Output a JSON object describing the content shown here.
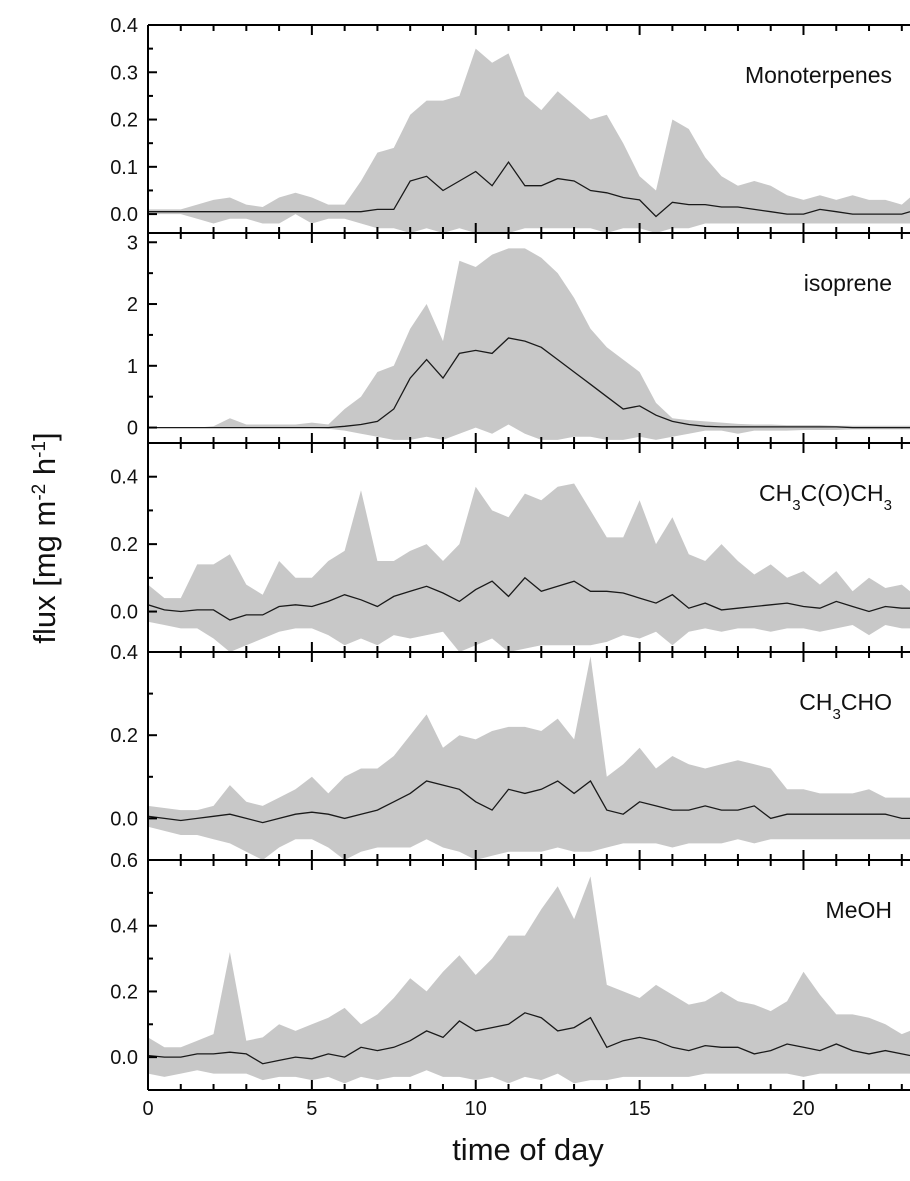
{
  "chart_data": {
    "type": "area",
    "xlabel": "time of day",
    "ylabel": "flux [mg m-2 h-1]",
    "ylabel_parts": {
      "main": "flux [mg m",
      "sup1": "-2",
      "mid": " h",
      "sup2": "-1",
      "end": "]"
    },
    "xlim": [
      0,
      23.25
    ],
    "xticks": [
      0,
      5,
      10,
      15,
      20
    ],
    "xtick_labels": [
      "0",
      "5",
      "10",
      "15",
      "20"
    ],
    "grid": false,
    "colors": {
      "band": "#c8c8c8",
      "line": "#1a1a1a",
      "axis": "#000000"
    },
    "x": [
      0,
      0.5,
      1,
      1.5,
      2,
      2.5,
      3,
      3.5,
      4,
      4.5,
      5,
      5.5,
      6,
      6.5,
      7,
      7.5,
      8,
      8.5,
      9,
      9.5,
      10,
      10.5,
      11,
      11.5,
      12,
      12.5,
      13,
      13.5,
      14,
      14.5,
      15,
      15.5,
      16,
      16.5,
      17,
      17.5,
      18,
      18.5,
      19,
      19.5,
      20,
      20.5,
      21,
      21.5,
      22,
      22.5,
      23,
      23.25
    ],
    "panels": [
      {
        "label": "Monoterpenes",
        "ylim": [
          -0.04,
          0.4
        ],
        "yticks": [
          0.0,
          0.1,
          0.2,
          0.3,
          0.4
        ],
        "ytick_labels": [
          "0.0",
          "0.1",
          "0.2",
          "0.3",
          "0.4"
        ],
        "mean": [
          0.005,
          0.005,
          0.005,
          0.005,
          0.005,
          0.005,
          0.005,
          0.005,
          0.005,
          0.005,
          0.005,
          0.005,
          0.005,
          0.005,
          0.01,
          0.01,
          0.07,
          0.08,
          0.05,
          0.07,
          0.09,
          0.06,
          0.11,
          0.06,
          0.06,
          0.075,
          0.07,
          0.05,
          0.045,
          0.035,
          0.03,
          -0.005,
          0.025,
          0.02,
          0.02,
          0.015,
          0.015,
          0.01,
          0.005,
          0.0,
          0.0,
          0.01,
          0.005,
          0.0,
          0.0,
          0.0,
          0.0,
          0.005
        ],
        "upper": [
          0.01,
          0.01,
          0.01,
          0.02,
          0.03,
          0.035,
          0.02,
          0.015,
          0.035,
          0.045,
          0.035,
          0.02,
          0.02,
          0.07,
          0.13,
          0.14,
          0.21,
          0.24,
          0.24,
          0.25,
          0.35,
          0.32,
          0.34,
          0.25,
          0.22,
          0.26,
          0.23,
          0.2,
          0.21,
          0.15,
          0.08,
          0.05,
          0.2,
          0.18,
          0.12,
          0.08,
          0.06,
          0.07,
          0.06,
          0.04,
          0.03,
          0.04,
          0.03,
          0.04,
          0.03,
          0.03,
          0.02,
          0.035
        ],
        "lower": [
          0.0,
          0.0,
          0.0,
          -0.01,
          -0.02,
          -0.01,
          -0.01,
          -0.02,
          -0.02,
          0.0,
          -0.02,
          -0.01,
          -0.01,
          -0.02,
          -0.03,
          -0.03,
          -0.04,
          -0.03,
          -0.04,
          -0.03,
          -0.04,
          -0.04,
          -0.04,
          -0.03,
          -0.03,
          -0.03,
          -0.03,
          -0.03,
          -0.04,
          -0.03,
          -0.03,
          -0.04,
          -0.03,
          -0.03,
          -0.02,
          -0.02,
          -0.02,
          -0.02,
          -0.02,
          -0.02,
          -0.02,
          -0.02,
          -0.02,
          -0.02,
          -0.02,
          -0.02,
          -0.02,
          -0.02
        ]
      },
      {
        "label": "isoprene",
        "ylim": [
          -0.25,
          3.15
        ],
        "yticks": [
          0,
          1,
          2,
          3
        ],
        "ytick_labels": [
          "0",
          "1",
          "2",
          "3"
        ],
        "mean": [
          0,
          0,
          0,
          0,
          0,
          0,
          0,
          0,
          0,
          0,
          0,
          0,
          0.02,
          0.05,
          0.1,
          0.3,
          0.8,
          1.1,
          0.8,
          1.2,
          1.25,
          1.2,
          1.45,
          1.4,
          1.3,
          1.1,
          0.9,
          0.7,
          0.5,
          0.3,
          0.35,
          0.2,
          0.1,
          0.05,
          0.02,
          0.01,
          0.01,
          0.01,
          0.01,
          0.01,
          0.01,
          0.01,
          0.01,
          0.0,
          0.0,
          0.0,
          0.0,
          0.0
        ],
        "upper": [
          0,
          0,
          0,
          0,
          0.02,
          0.15,
          0.05,
          0.05,
          0.05,
          0.05,
          0.08,
          0.05,
          0.3,
          0.5,
          0.9,
          1.0,
          1.6,
          2.0,
          1.4,
          2.7,
          2.6,
          2.8,
          2.9,
          2.9,
          2.75,
          2.5,
          2.1,
          1.6,
          1.3,
          1.1,
          0.9,
          0.4,
          0.15,
          0.12,
          0.1,
          0.08,
          0.06,
          0.05,
          0.05,
          0.04,
          0.04,
          0.04,
          0.03,
          0.03,
          0.03,
          0.03,
          0.03,
          0.03
        ],
        "lower": [
          0,
          0,
          0,
          0,
          0,
          0,
          0,
          0,
          0,
          0,
          0,
          -0.02,
          -0.05,
          -0.1,
          -0.15,
          -0.2,
          -0.2,
          -0.15,
          -0.2,
          -0.1,
          0.0,
          -0.1,
          0.05,
          -0.1,
          -0.2,
          -0.2,
          -0.15,
          -0.15,
          -0.2,
          -0.2,
          -0.15,
          -0.2,
          -0.15,
          -0.1,
          -0.05,
          -0.05,
          -0.1,
          -0.05,
          -0.05,
          -0.05,
          -0.04,
          -0.04,
          -0.04,
          -0.03,
          -0.03,
          -0.03,
          -0.03,
          -0.03
        ]
      },
      {
        "label": "CH3C(O)CH3",
        "label_parts": [
          "CH",
          "3",
          "C(O)CH",
          "3"
        ],
        "ylim": [
          -0.12,
          0.5
        ],
        "yticks": [
          0.0,
          0.2,
          0.4
        ],
        "ytick_labels": [
          "0.0",
          "0.2",
          "0.4"
        ],
        "mean": [
          0.02,
          0.005,
          0.0,
          0.005,
          0.005,
          -0.025,
          -0.01,
          -0.01,
          0.015,
          0.02,
          0.015,
          0.03,
          0.05,
          0.035,
          0.015,
          0.045,
          0.06,
          0.075,
          0.055,
          0.03,
          0.065,
          0.09,
          0.045,
          0.1,
          0.06,
          0.075,
          0.09,
          0.06,
          0.06,
          0.055,
          0.04,
          0.025,
          0.05,
          0.01,
          0.025,
          0.005,
          0.01,
          0.015,
          0.02,
          0.025,
          0.015,
          0.01,
          0.03,
          0.015,
          0.0,
          0.015,
          0.01,
          0.01
        ],
        "upper": [
          0.08,
          0.04,
          0.04,
          0.14,
          0.14,
          0.17,
          0.08,
          0.05,
          0.15,
          0.1,
          0.1,
          0.15,
          0.18,
          0.36,
          0.15,
          0.15,
          0.18,
          0.2,
          0.15,
          0.2,
          0.37,
          0.3,
          0.28,
          0.35,
          0.33,
          0.37,
          0.38,
          0.3,
          0.22,
          0.22,
          0.33,
          0.2,
          0.28,
          0.17,
          0.15,
          0.2,
          0.15,
          0.11,
          0.14,
          0.1,
          0.12,
          0.08,
          0.12,
          0.06,
          0.1,
          0.07,
          0.08,
          0.06
        ],
        "lower": [
          -0.03,
          -0.04,
          -0.05,
          -0.05,
          -0.08,
          -0.12,
          -0.1,
          -0.08,
          -0.06,
          -0.05,
          -0.05,
          -0.07,
          -0.1,
          -0.08,
          -0.1,
          -0.07,
          -0.08,
          -0.07,
          -0.06,
          -0.12,
          -0.1,
          -0.08,
          -0.12,
          -0.11,
          -0.1,
          -0.1,
          -0.1,
          -0.1,
          -0.09,
          -0.07,
          -0.08,
          -0.06,
          -0.1,
          -0.06,
          -0.05,
          -0.06,
          -0.05,
          -0.05,
          -0.06,
          -0.05,
          -0.05,
          -0.06,
          -0.05,
          -0.04,
          -0.07,
          -0.04,
          -0.05,
          -0.05
        ]
      },
      {
        "label": "CH3CHO",
        "label_parts": [
          "CH",
          "3",
          "CHO",
          ""
        ],
        "ylim": [
          -0.1,
          0.4
        ],
        "yticks": [
          0.0,
          0.2,
          0.4
        ],
        "ytick_labels": [
          "0.0",
          "0.2",
          "0.4"
        ],
        "mean": [
          0.005,
          0.0,
          -0.005,
          0.0,
          0.005,
          0.01,
          0.0,
          -0.01,
          0.0,
          0.01,
          0.015,
          0.01,
          0.0,
          0.01,
          0.02,
          0.04,
          0.06,
          0.09,
          0.08,
          0.07,
          0.04,
          0.02,
          0.07,
          0.06,
          0.07,
          0.09,
          0.06,
          0.09,
          0.02,
          0.01,
          0.04,
          0.03,
          0.02,
          0.02,
          0.03,
          0.02,
          0.02,
          0.03,
          0.0,
          0.01,
          0.01,
          0.01,
          0.01,
          0.01,
          0.01,
          0.01,
          0.0,
          0.0
        ],
        "upper": [
          0.03,
          0.025,
          0.02,
          0.02,
          0.03,
          0.08,
          0.04,
          0.03,
          0.05,
          0.07,
          0.1,
          0.06,
          0.1,
          0.12,
          0.12,
          0.15,
          0.2,
          0.25,
          0.17,
          0.2,
          0.19,
          0.21,
          0.22,
          0.22,
          0.21,
          0.24,
          0.19,
          0.39,
          0.1,
          0.13,
          0.17,
          0.12,
          0.15,
          0.13,
          0.12,
          0.13,
          0.14,
          0.13,
          0.12,
          0.07,
          0.07,
          0.06,
          0.06,
          0.06,
          0.07,
          0.05,
          0.05,
          0.05
        ],
        "lower": [
          -0.02,
          -0.03,
          -0.04,
          -0.04,
          -0.05,
          -0.06,
          -0.08,
          -0.1,
          -0.07,
          -0.05,
          -0.05,
          -0.07,
          -0.1,
          -0.08,
          -0.07,
          -0.07,
          -0.07,
          -0.05,
          -0.07,
          -0.08,
          -0.1,
          -0.09,
          -0.08,
          -0.08,
          -0.08,
          -0.07,
          -0.08,
          -0.08,
          -0.07,
          -0.06,
          -0.06,
          -0.06,
          -0.07,
          -0.06,
          -0.06,
          -0.06,
          -0.05,
          -0.06,
          -0.05,
          -0.05,
          -0.05,
          -0.05,
          -0.05,
          -0.05,
          -0.05,
          -0.05,
          -0.05,
          -0.05
        ]
      },
      {
        "label": "MeOH",
        "ylim": [
          -0.1,
          0.6
        ],
        "yticks": [
          0.0,
          0.2,
          0.4,
          0.6
        ],
        "ytick_labels": [
          "0.0",
          "0.2",
          "0.4",
          "0.6"
        ],
        "mean": [
          0.005,
          0.0,
          0.0,
          0.01,
          0.01,
          0.015,
          0.01,
          -0.02,
          -0.01,
          0.0,
          -0.005,
          0.01,
          0.0,
          0.03,
          0.02,
          0.03,
          0.05,
          0.08,
          0.06,
          0.11,
          0.08,
          0.09,
          0.1,
          0.135,
          0.12,
          0.08,
          0.09,
          0.12,
          0.03,
          0.05,
          0.06,
          0.05,
          0.03,
          0.02,
          0.035,
          0.03,
          0.03,
          0.01,
          0.02,
          0.04,
          0.03,
          0.02,
          0.04,
          0.02,
          0.01,
          0.02,
          0.01,
          0.005
        ],
        "upper": [
          0.06,
          0.03,
          0.03,
          0.05,
          0.07,
          0.32,
          0.05,
          0.06,
          0.1,
          0.08,
          0.1,
          0.12,
          0.15,
          0.1,
          0.13,
          0.18,
          0.24,
          0.2,
          0.26,
          0.31,
          0.25,
          0.3,
          0.37,
          0.37,
          0.45,
          0.52,
          0.42,
          0.55,
          0.22,
          0.2,
          0.18,
          0.22,
          0.19,
          0.16,
          0.17,
          0.2,
          0.17,
          0.16,
          0.14,
          0.17,
          0.26,
          0.19,
          0.13,
          0.13,
          0.12,
          0.1,
          0.07,
          0.08
        ],
        "lower": [
          -0.05,
          -0.06,
          -0.05,
          -0.04,
          -0.05,
          -0.05,
          -0.05,
          -0.07,
          -0.06,
          -0.06,
          -0.07,
          -0.06,
          -0.08,
          -0.06,
          -0.07,
          -0.06,
          -0.06,
          -0.04,
          -0.06,
          -0.06,
          -0.07,
          -0.06,
          -0.08,
          -0.06,
          -0.07,
          -0.05,
          -0.08,
          -0.07,
          -0.07,
          -0.06,
          -0.06,
          -0.06,
          -0.06,
          -0.06,
          -0.05,
          -0.05,
          -0.05,
          -0.05,
          -0.05,
          -0.05,
          -0.06,
          -0.05,
          -0.05,
          -0.05,
          -0.05,
          -0.05,
          -0.05,
          -0.05
        ]
      }
    ]
  }
}
